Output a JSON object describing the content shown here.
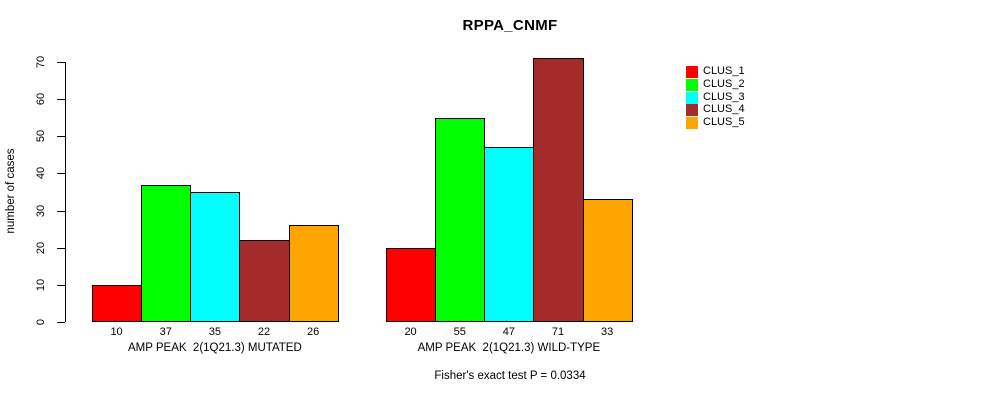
{
  "title": "RPPA_CNMF",
  "subtitle": "Fisher's exact test P = 0.0334",
  "ylabel": "number of cases",
  "chart_data": {
    "type": "bar",
    "title": "RPPA_CNMF",
    "xlabel": "",
    "ylabel": "number of cases",
    "ylim": [
      0,
      70
    ],
    "yticks": [
      0,
      10,
      20,
      30,
      40,
      50,
      60,
      70
    ],
    "grid": false,
    "legend_position": "right",
    "categories": [
      "AMP PEAK  2(1Q21.3) MUTATED",
      "AMP PEAK  2(1Q21.3) WILD-TYPE"
    ],
    "series": [
      {
        "name": "CLUS_1",
        "color": "#FF0000",
        "values": [
          10,
          20
        ]
      },
      {
        "name": "CLUS_2",
        "color": "#00FF00",
        "values": [
          37,
          55
        ]
      },
      {
        "name": "CLUS_3",
        "color": "#00FFFF",
        "values": [
          35,
          47
        ]
      },
      {
        "name": "CLUS_4",
        "color": "#A52A2A",
        "values": [
          22,
          71
        ]
      },
      {
        "name": "CLUS_5",
        "color": "#FFA500",
        "values": [
          26,
          33
        ]
      }
    ],
    "bar_value_labels": [
      [
        10,
        37,
        35,
        22,
        26
      ],
      [
        20,
        55,
        47,
        71,
        33
      ]
    ],
    "annotation": "Fisher's exact test P = 0.0334"
  },
  "legend": {
    "items": [
      {
        "label": "CLUS_1",
        "color": "#FF0000"
      },
      {
        "label": "CLUS_2",
        "color": "#00FF00"
      },
      {
        "label": "CLUS_3",
        "color": "#00FFFF"
      },
      {
        "label": "CLUS_4",
        "color": "#A52A2A"
      },
      {
        "label": "CLUS_5",
        "color": "#FFA500"
      }
    ]
  }
}
